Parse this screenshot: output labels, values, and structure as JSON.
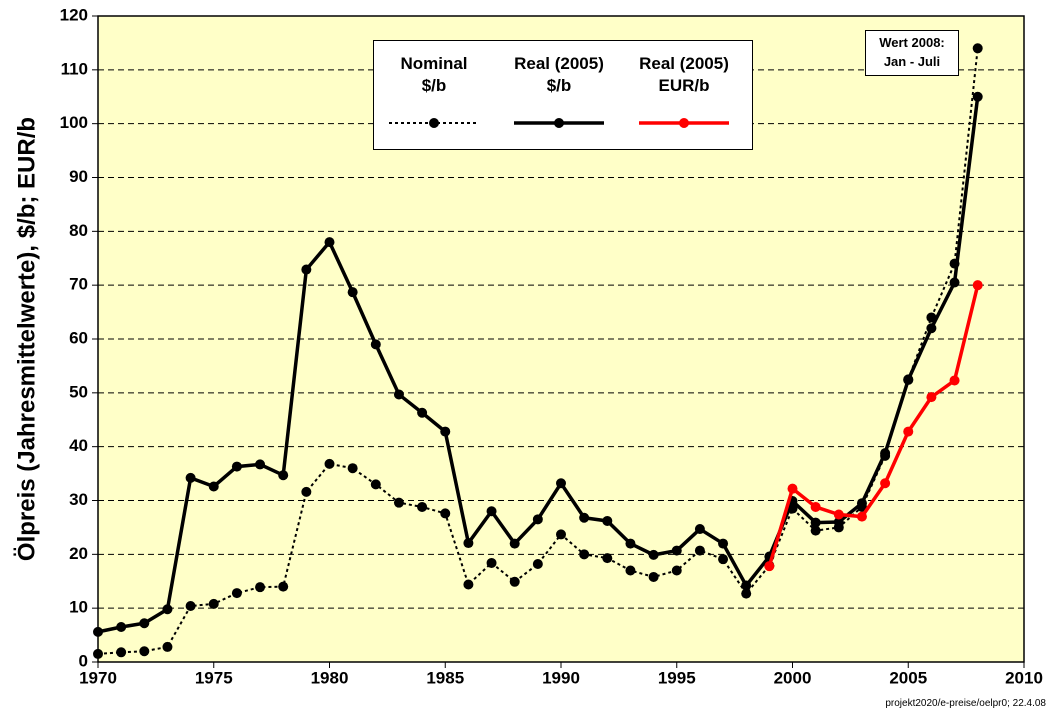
{
  "chart_data": {
    "type": "line",
    "ylabel": "Ölpreis (Jahresmittelwerte), $/b; EUR/b",
    "annotation": "Wert 2008:\nJan -  Juli",
    "footnote": "projekt2020/e-preise/oelpr0; 22.4.08",
    "x": [
      1970,
      1971,
      1972,
      1973,
      1974,
      1975,
      1976,
      1977,
      1978,
      1979,
      1980,
      1981,
      1982,
      1983,
      1984,
      1985,
      1986,
      1987,
      1988,
      1989,
      1990,
      1991,
      1992,
      1993,
      1994,
      1995,
      1996,
      1997,
      1998,
      1999,
      2000,
      2001,
      2002,
      2003,
      2004,
      2005,
      2006,
      2007,
      2008
    ],
    "series": [
      {
        "name": "Nominal\n$/b",
        "color": "#000000",
        "style": "dotted",
        "values": [
          1.5,
          1.8,
          2.0,
          2.8,
          10.4,
          10.8,
          12.8,
          13.9,
          14.0,
          31.6,
          36.8,
          36.0,
          33.0,
          29.6,
          28.8,
          27.6,
          14.4,
          18.4,
          14.9,
          18.2,
          23.7,
          20.0,
          19.3,
          17.0,
          15.8,
          17.0,
          20.7,
          19.1,
          12.7,
          17.9,
          28.5,
          24.4,
          25.0,
          28.8,
          38.3,
          52.5,
          64.0,
          74.0,
          114.0
        ]
      },
      {
        "name": "Real (2005)\n$/b",
        "color": "#000000",
        "style": "solid",
        "values": [
          5.6,
          6.5,
          7.2,
          9.8,
          34.2,
          32.6,
          36.3,
          36.7,
          34.7,
          72.9,
          78.0,
          68.7,
          59.0,
          49.7,
          46.3,
          42.8,
          22.1,
          28.0,
          22.0,
          26.5,
          33.2,
          26.8,
          26.2,
          22.0,
          19.9,
          20.7,
          24.7,
          22.0,
          14.2,
          19.6,
          29.9,
          25.9,
          26.0,
          29.5,
          38.8,
          52.4,
          62.0,
          70.5,
          105.0
        ]
      },
      {
        "name": "Real (2005)\nEUR/b",
        "color": "#ff0000",
        "style": "solid",
        "values": [
          null,
          null,
          null,
          null,
          null,
          null,
          null,
          null,
          null,
          null,
          null,
          null,
          null,
          null,
          null,
          null,
          null,
          null,
          null,
          null,
          null,
          null,
          null,
          null,
          null,
          null,
          null,
          null,
          null,
          17.8,
          32.2,
          28.8,
          27.4,
          27.0,
          33.2,
          42.8,
          49.2,
          52.3,
          70.0
        ]
      }
    ],
    "xlim": [
      1970,
      2010
    ],
    "xticks": [
      1970,
      1975,
      1980,
      1985,
      1990,
      1995,
      2000,
      2005,
      2010
    ],
    "ylim": [
      0,
      120
    ],
    "yticks": [
      0,
      10,
      20,
      30,
      40,
      50,
      60,
      70,
      80,
      90,
      100,
      110,
      120
    ],
    "grid": true,
    "background": "#ffffc8"
  }
}
